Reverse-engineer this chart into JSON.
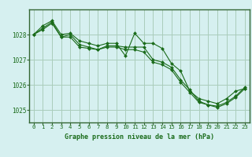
{
  "title": "Graphe pression niveau de la mer (hPa)",
  "background_color": "#d6f0f0",
  "plot_bg_color": "#d6f0f0",
  "grid_color": "#aaccbb",
  "line_color": "#1a6b1a",
  "marker_color": "#1a6b1a",
  "border_color": "#336633",
  "xlim": [
    -0.5,
    23.5
  ],
  "ylim": [
    1024.5,
    1029.0
  ],
  "yticks": [
    1025,
    1026,
    1027,
    1028
  ],
  "xticks": [
    0,
    1,
    2,
    3,
    4,
    5,
    6,
    7,
    8,
    9,
    10,
    11,
    12,
    13,
    14,
    15,
    16,
    17,
    18,
    19,
    20,
    21,
    22,
    23
  ],
  "series": [
    {
      "x": [
        0,
        1,
        2,
        3,
        4,
        5,
        6,
        7,
        8,
        9,
        10,
        11,
        12,
        13,
        14,
        15,
        16,
        17,
        18,
        19,
        20,
        21,
        22,
        23
      ],
      "y": [
        1028.0,
        1028.35,
        1028.55,
        1028.0,
        1028.05,
        1027.75,
        1027.65,
        1027.55,
        1027.65,
        1027.65,
        1027.15,
        1028.05,
        1027.65,
        1027.65,
        1027.45,
        1026.85,
        1026.55,
        1025.75,
        1025.45,
        1025.35,
        1025.25,
        1025.45,
        1025.75,
        1025.85
      ]
    },
    {
      "x": [
        0,
        1,
        2,
        3,
        4,
        5,
        6,
        7,
        8,
        9,
        10,
        11,
        12,
        13,
        14,
        15,
        16,
        17,
        18,
        19,
        20,
        21,
        22,
        23
      ],
      "y": [
        1028.0,
        1028.25,
        1028.5,
        1027.9,
        1028.0,
        1027.6,
        1027.5,
        1027.4,
        1027.55,
        1027.55,
        1027.5,
        1027.5,
        1027.5,
        1027.0,
        1026.9,
        1026.7,
        1026.2,
        1025.8,
        1025.35,
        1025.2,
        1025.15,
        1025.3,
        1025.55,
        1025.9
      ]
    },
    {
      "x": [
        0,
        1,
        2,
        3,
        4,
        5,
        6,
        7,
        8,
        9,
        10,
        11,
        12,
        13,
        14,
        15,
        16,
        17,
        18,
        19,
        20,
        21,
        22,
        23
      ],
      "y": [
        1028.0,
        1028.2,
        1028.45,
        1027.9,
        1027.9,
        1027.5,
        1027.45,
        1027.4,
        1027.5,
        1027.5,
        1027.4,
        1027.4,
        1027.3,
        1026.9,
        1026.8,
        1026.6,
        1026.1,
        1025.7,
        1025.3,
        1025.2,
        1025.1,
        1025.25,
        1025.5,
        1025.85
      ]
    }
  ]
}
